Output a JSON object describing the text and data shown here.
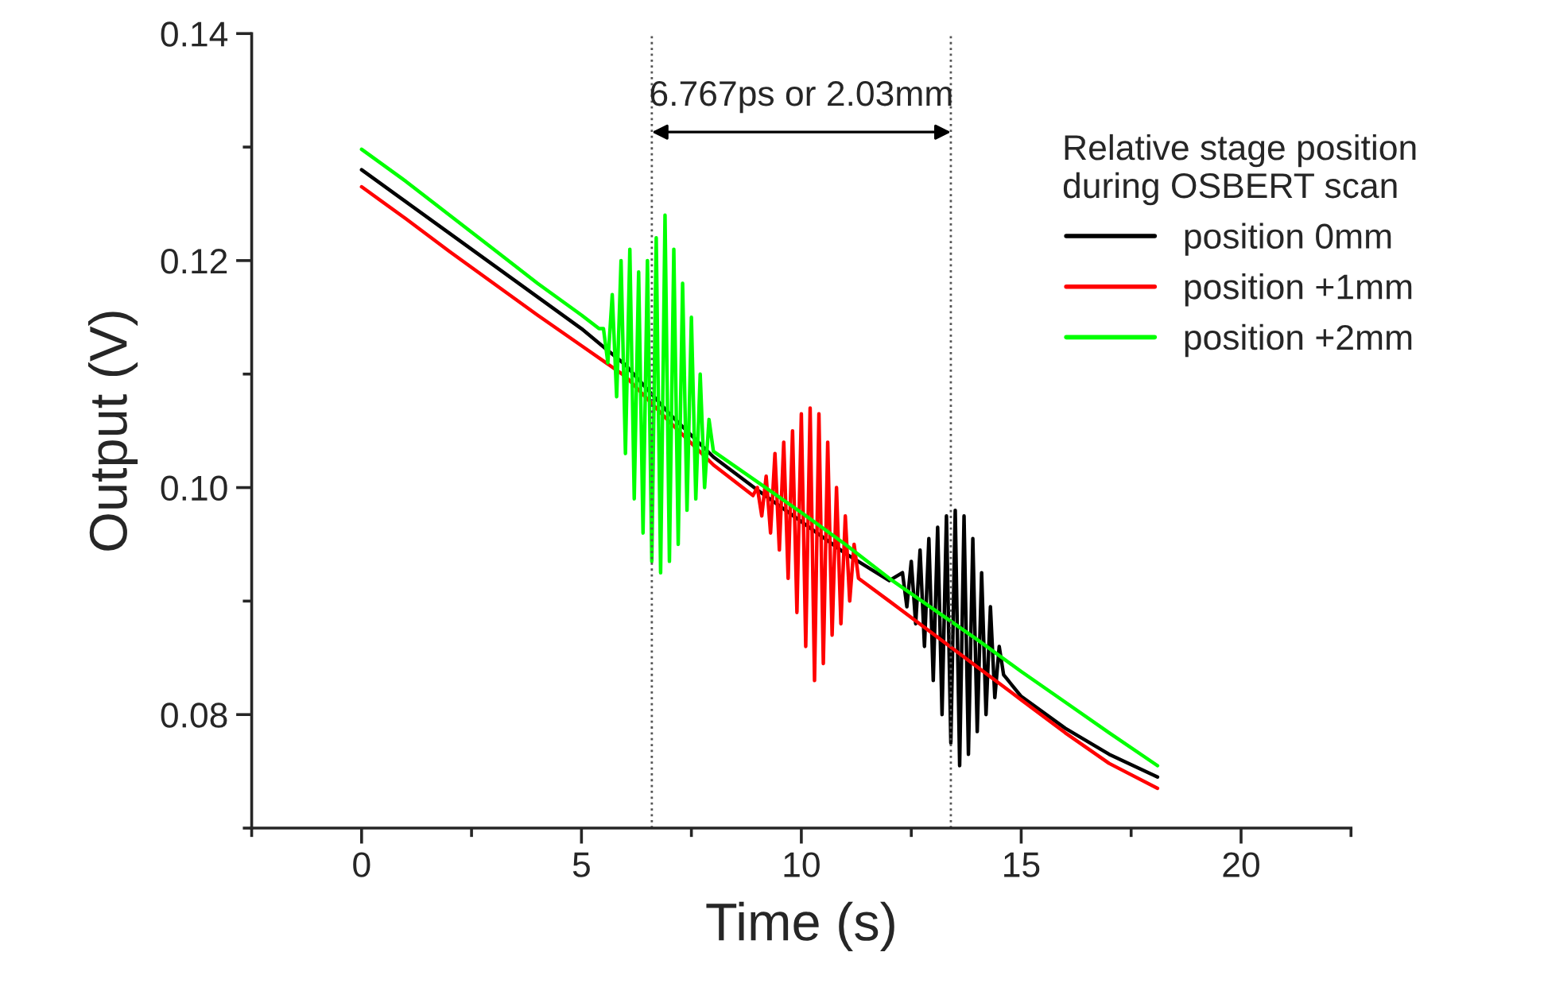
{
  "chart_data": {
    "type": "line",
    "xlabel": "Time (s)",
    "ylabel": "Output (V)",
    "legend_title": "Relative stage position\nduring OSBERT scan",
    "legend": "top right",
    "grid": false,
    "line_style": "solid",
    "marker": "none",
    "xlim": [
      -2.5,
      22.5
    ],
    "ylim": [
      0.07,
      0.14
    ],
    "xticks": [
      {
        "value": -2.5,
        "label": null
      },
      0,
      {
        "value": 2.5,
        "label": null
      },
      5,
      {
        "value": 7.5,
        "label": null
      },
      10,
      {
        "value": 12.5,
        "label": null
      },
      15,
      {
        "value": 17.5,
        "label": null
      },
      20,
      {
        "value": 22.5,
        "label": null
      }
    ],
    "yticks": [
      {
        "value": 0.07,
        "label": null
      },
      {
        "value": 0.08,
        "label": "0.08"
      },
      {
        "value": 0.09,
        "label": null
      },
      {
        "value": 0.1,
        "label": "0.10"
      },
      {
        "value": 0.11,
        "label": null
      },
      {
        "value": 0.12,
        "label": "0.12"
      },
      {
        "value": 0.13,
        "label": null
      },
      {
        "value": 0.14,
        "label": "0.14"
      }
    ],
    "ref_lines": [
      {
        "axis": "x",
        "value": 6.6,
        "color": "#555555",
        "line_style": "dotted"
      },
      {
        "axis": "x",
        "value": 13.4,
        "color": "#555555",
        "line_style": "dotted"
      }
    ],
    "annotations": [
      "6.767ps or 2.03mm"
    ],
    "series": [
      {
        "name": "position 0mm",
        "color": "#000000",
        "x": [
          0,
          1,
          2,
          3,
          4,
          5,
          6,
          7,
          8,
          9,
          10,
          11,
          12,
          12.3,
          12.4,
          12.5,
          12.6,
          12.7,
          12.8,
          12.9,
          13.0,
          13.1,
          13.2,
          13.3,
          13.4,
          13.5,
          13.6,
          13.7,
          13.8,
          13.9,
          14.0,
          14.1,
          14.2,
          14.3,
          14.4,
          14.5,
          14.6,
          15,
          16,
          17,
          18.1
        ],
        "values": [
          0.128,
          0.1252,
          0.1224,
          0.1196,
          0.1168,
          0.114,
          0.1108,
          0.1065,
          0.1027,
          0.0998,
          0.097,
          0.0942,
          0.0918,
          0.0925,
          0.0895,
          0.0935,
          0.088,
          0.0945,
          0.086,
          0.0955,
          0.083,
          0.0965,
          0.08,
          0.0975,
          0.0775,
          0.098,
          0.0755,
          0.0975,
          0.0765,
          0.0955,
          0.0785,
          0.0925,
          0.08,
          0.0895,
          0.0815,
          0.086,
          0.0835,
          0.0816,
          0.0788,
          0.0765,
          0.0745
        ]
      },
      {
        "name": "position +1mm",
        "color": "#ff0000",
        "x": [
          0,
          1,
          2,
          3,
          4,
          5,
          6,
          7,
          8,
          8.9,
          9.0,
          9.1,
          9.2,
          9.3,
          9.4,
          9.5,
          9.6,
          9.7,
          9.8,
          9.9,
          10.0,
          10.1,
          10.2,
          10.3,
          10.4,
          10.5,
          10.6,
          10.7,
          10.8,
          10.9,
          11.0,
          11.1,
          11.2,
          11.3,
          12,
          13,
          14,
          15,
          16,
          17,
          18.1
        ],
        "values": [
          0.1265,
          0.1237,
          0.1208,
          0.118,
          0.1152,
          0.1125,
          0.1098,
          0.1058,
          0.102,
          0.0993,
          0.1,
          0.0975,
          0.101,
          0.096,
          0.103,
          0.0945,
          0.104,
          0.092,
          0.105,
          0.089,
          0.1065,
          0.086,
          0.107,
          0.083,
          0.1065,
          0.0845,
          0.104,
          0.087,
          0.1,
          0.088,
          0.0975,
          0.09,
          0.095,
          0.092,
          0.09,
          0.0871,
          0.0842,
          0.0813,
          0.0784,
          0.0757,
          0.0735
        ]
      },
      {
        "name": "position +2mm",
        "color": "#00ff00",
        "x": [
          0,
          1,
          2,
          3,
          4,
          5,
          5.4,
          5.5,
          5.6,
          5.7,
          5.8,
          5.9,
          6.0,
          6.1,
          6.2,
          6.3,
          6.4,
          6.5,
          6.6,
          6.7,
          6.8,
          6.9,
          7.0,
          7.1,
          7.2,
          7.3,
          7.4,
          7.5,
          7.6,
          7.7,
          7.8,
          7.9,
          8.0,
          9,
          10,
          11,
          12,
          13,
          14,
          15,
          16,
          17,
          18.1
        ],
        "values": [
          0.1298,
          0.127,
          0.124,
          0.121,
          0.118,
          0.1152,
          0.114,
          0.114,
          0.111,
          0.117,
          0.108,
          0.12,
          0.103,
          0.121,
          0.099,
          0.119,
          0.096,
          0.12,
          0.0935,
          0.122,
          0.0925,
          0.124,
          0.0935,
          0.121,
          0.095,
          0.118,
          0.098,
          0.115,
          0.099,
          0.11,
          0.1,
          0.106,
          0.1032,
          0.1005,
          0.0978,
          0.095,
          0.092,
          0.0893,
          0.0866,
          0.0838,
          0.0811,
          0.0784,
          0.0755
        ]
      }
    ]
  }
}
